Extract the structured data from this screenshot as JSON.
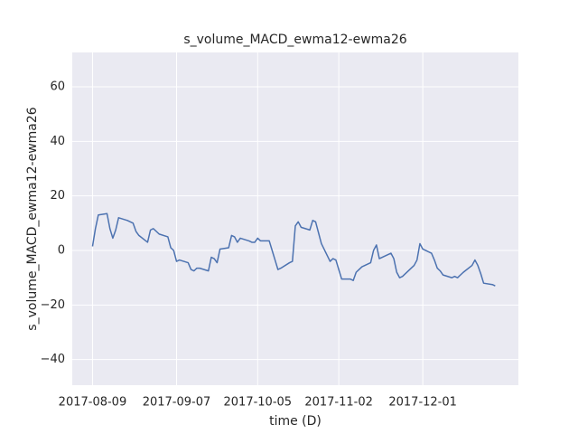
{
  "chart_data": {
    "type": "line",
    "title": "s_volume_MACD_ewma12-ewma26",
    "x_label": "time (D)",
    "y_label": "s_volume_MACD_ewma12-ewma26",
    "color": "#4c72b0",
    "grid": true,
    "x": [
      "2017-08-09",
      "2017-08-10",
      "2017-08-11",
      "2017-08-14",
      "2017-08-15",
      "2017-08-16",
      "2017-08-17",
      "2017-08-18",
      "2017-08-21",
      "2017-08-22",
      "2017-08-23",
      "2017-08-24",
      "2017-08-25",
      "2017-08-28",
      "2017-08-29",
      "2017-08-30",
      "2017-08-31",
      "2017-09-01",
      "2017-09-04",
      "2017-09-05",
      "2017-09-06",
      "2017-09-07",
      "2017-09-08",
      "2017-09-11",
      "2017-09-12",
      "2017-09-13",
      "2017-09-14",
      "2017-09-15",
      "2017-09-18",
      "2017-09-19",
      "2017-09-20",
      "2017-09-21",
      "2017-09-22",
      "2017-09-25",
      "2017-09-26",
      "2017-09-27",
      "2017-09-28",
      "2017-09-29",
      "2017-10-02",
      "2017-10-03",
      "2017-10-04",
      "2017-10-05",
      "2017-10-06",
      "2017-10-09",
      "2017-10-10",
      "2017-10-11",
      "2017-10-12",
      "2017-10-13",
      "2017-10-16",
      "2017-10-17",
      "2017-10-18",
      "2017-10-19",
      "2017-10-20",
      "2017-10-23",
      "2017-10-24",
      "2017-10-25",
      "2017-10-26",
      "2017-10-27",
      "2017-10-30",
      "2017-10-31",
      "2017-11-01",
      "2017-11-02",
      "2017-11-03",
      "2017-11-06",
      "2017-11-07",
      "2017-11-08",
      "2017-11-09",
      "2017-11-10",
      "2017-11-13",
      "2017-11-14",
      "2017-11-15",
      "2017-11-16",
      "2017-11-17",
      "2017-11-20",
      "2017-11-21",
      "2017-11-22",
      "2017-11-23",
      "2017-11-24",
      "2017-11-27",
      "2017-11-28",
      "2017-11-29",
      "2017-11-30",
      "2017-12-01",
      "2017-12-04",
      "2017-12-05",
      "2017-12-06",
      "2017-12-07",
      "2017-12-08",
      "2017-12-11",
      "2017-12-12",
      "2017-12-13",
      "2017-12-14",
      "2017-12-15",
      "2017-12-18",
      "2017-12-19",
      "2017-12-20",
      "2017-12-21",
      "2017-12-22",
      "2017-12-25",
      "2017-12-26"
    ],
    "values": [
      1.5,
      8,
      13,
      13.5,
      8,
      4.5,
      7.5,
      12,
      11,
      10.5,
      10,
      7,
      5.5,
      3,
      7.5,
      8,
      7,
      6,
      5,
      1,
      0,
      -4,
      -3.5,
      -4.5,
      -7,
      -7.5,
      -6.5,
      -6.5,
      -7.5,
      -2.5,
      -3,
      -4.5,
      0.5,
      1,
      5.5,
      5,
      3,
      4.5,
      3.5,
      3,
      3,
      4.5,
      3.5,
      3.5,
      0,
      -3.5,
      -7,
      -6.5,
      -4.5,
      -4,
      9,
      10.5,
      8.5,
      7.5,
      11,
      10.5,
      6.5,
      2.5,
      -4,
      -3,
      -3.5,
      -7,
      -10.5,
      -10.5,
      -11,
      -8,
      -7,
      -6,
      -4.5,
      0,
      2,
      -3,
      -2.5,
      -1,
      -3,
      -8,
      -10,
      -9.5,
      -6.5,
      -5.5,
      -3.5,
      2.5,
      0.5,
      -1,
      -3.5,
      -6.5,
      -7.5,
      -9,
      -10,
      -9.5,
      -10,
      -9,
      -8,
      -5.5,
      -3.5,
      -5.5,
      -8.5,
      -12,
      -12.5,
      -13
    ],
    "xlim": [
      "2017-08-02",
      "2018-01-03"
    ],
    "xticks": [
      "2017-08-09",
      "2017-09-07",
      "2017-10-05",
      "2017-11-02",
      "2017-12-01"
    ],
    "ylim": [
      -49.4,
      72.6
    ],
    "yticks": [
      {
        "value": -40,
        "label": "−40"
      },
      {
        "value": -20,
        "label": "−20"
      },
      0,
      20,
      40,
      60
    ]
  }
}
